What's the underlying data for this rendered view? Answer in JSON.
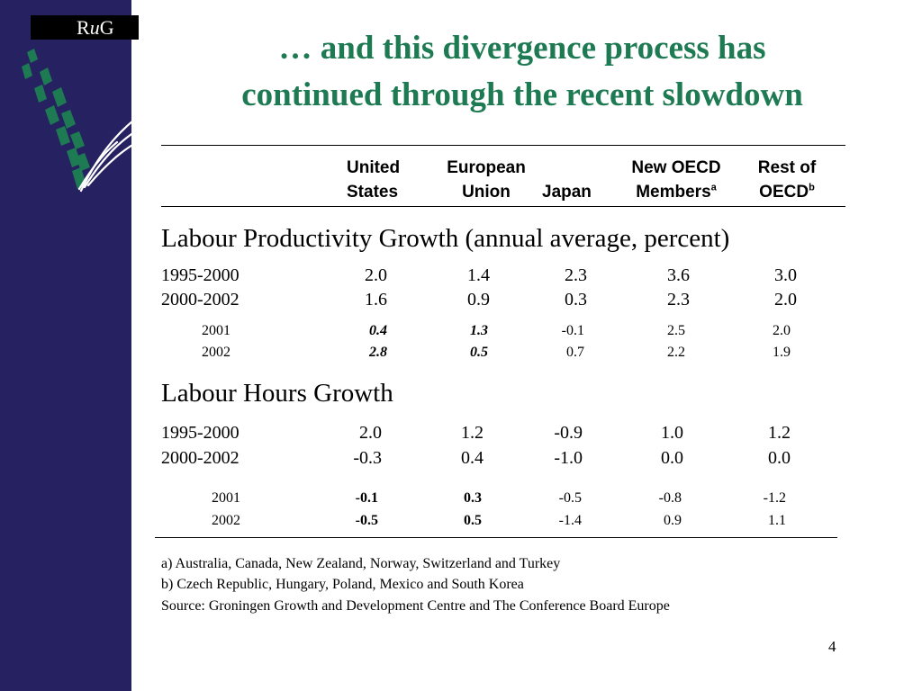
{
  "logo": {
    "text_r": "R",
    "text_u": "u",
    "text_g": "G"
  },
  "title": {
    "line1": "… and this divergence process has",
    "line2": "continued through the recent slowdown"
  },
  "columns": {
    "us_line1": "United",
    "us_line2": "States",
    "eu_line1": "European",
    "eu_line2": "Union",
    "jp_line2": "Japan",
    "noecd_line1": "New OECD",
    "noecd_line2": "Members",
    "noecd_sup": "a",
    "rest_line1": "Rest of",
    "rest_line2": "OECD",
    "rest_sup": "b"
  },
  "productivity": {
    "heading": "Labour Productivity Growth (annual average, percent)",
    "rows": [
      {
        "label": "1995-2000",
        "values": [
          "2.0",
          "1.4",
          "2.3",
          "3.6",
          "3.0"
        ]
      },
      {
        "label": "2000-2002",
        "values": [
          "1.6",
          "0.9",
          "0.3",
          "2.3",
          "2.0"
        ]
      }
    ],
    "subrows": [
      {
        "label": "2001",
        "values": [
          "0.4",
          "1.3",
          "-0.1",
          "2.5",
          "2.0"
        ]
      },
      {
        "label": "2002",
        "values": [
          "2.8",
          "0.5",
          "0.7",
          "2.2",
          "1.9"
        ]
      }
    ]
  },
  "hours": {
    "heading": "Labour Hours Growth",
    "rows": [
      {
        "label": "1995-2000",
        "values": [
          "2.0",
          "1.2",
          "-0.9",
          "1.0",
          "1.2"
        ]
      },
      {
        "label": "2000-2002",
        "values": [
          "-0.3",
          "0.4",
          "-1.0",
          "0.0",
          "0.0"
        ]
      }
    ],
    "subrows": [
      {
        "label": "2001",
        "values": [
          "-0.1",
          "0.3",
          "-0.5",
          "-0.8",
          "-1.2"
        ]
      },
      {
        "label": "2002",
        "values": [
          "-0.5",
          "0.5",
          "-1.4",
          "0.9",
          "1.1"
        ]
      }
    ]
  },
  "notes": {
    "a": "a) Australia, Canada, New Zealand, Norway, Switzerland and Turkey",
    "b": "b) Czech Republic, Hungary, Poland, Mexico and South Korea",
    "source": "Source: Groningen Growth and Development Centre and The Conference Board Europe"
  },
  "page_number": "4",
  "colors": {
    "sidebar": "#262262",
    "title": "#1e7a52",
    "logo_leaf": "#1e7a52"
  }
}
